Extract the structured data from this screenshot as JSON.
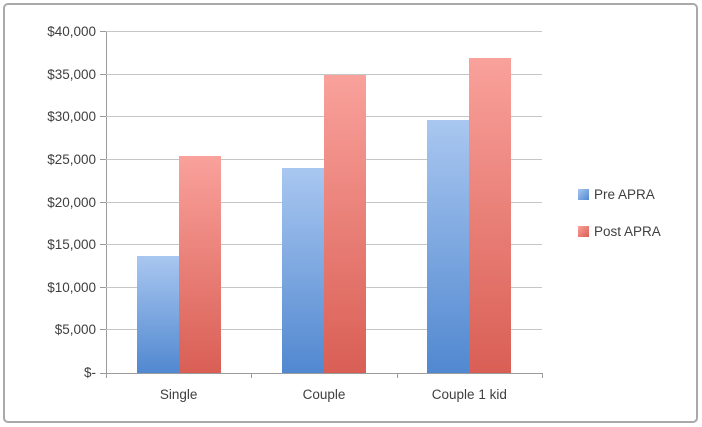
{
  "chart_data": {
    "type": "bar",
    "categories": [
      "Single",
      "Couple",
      "Couple 1 kid"
    ],
    "series": [
      {
        "name": "Pre APRA",
        "values": [
          13700,
          24000,
          29700
        ],
        "color_top": "#a9c7f0",
        "color_bottom": "#5188d0"
      },
      {
        "name": "Post APRA",
        "values": [
          25400,
          35000,
          37000
        ],
        "color_top": "#f9a19b",
        "color_bottom": "#d95f55"
      }
    ],
    "xlabel": "",
    "ylabel": "",
    "ylim": [
      0,
      40000
    ],
    "ytick_step": 5000,
    "ytick_labels": [
      "$-",
      "$5,000",
      "$10,000",
      "$15,000",
      "$20,000",
      "$25,000",
      "$30,000",
      "$35,000",
      "$40,000"
    ],
    "grid": true,
    "legend_position": "right"
  },
  "colors": {
    "gridline": "#c6c6c6",
    "axis": "#9b9b9b",
    "text": "#3f3f3f",
    "frame_border": "#a9a9a9"
  }
}
